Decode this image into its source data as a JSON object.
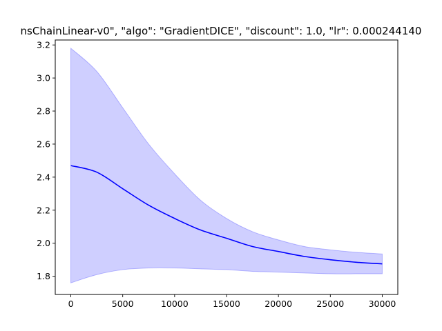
{
  "chart_data": {
    "type": "line",
    "title": "nsChainLinear-v0\", \"algo\": \"GradientDICE\", \"discount\": 1.0, \"lr\": 0.000244140",
    "xlabel": "",
    "ylabel": "",
    "xlim": [
      -1500,
      31500
    ],
    "ylim": [
      1.69,
      3.23
    ],
    "x_ticks": [
      0,
      5000,
      10000,
      15000,
      20000,
      25000,
      30000
    ],
    "y_ticks": [
      1.8,
      2.0,
      2.2,
      2.4,
      2.6,
      2.8,
      3.0,
      3.2
    ],
    "x_tick_labels": [
      "0",
      "5000",
      "10000",
      "15000",
      "20000",
      "25000",
      "30000"
    ],
    "y_tick_labels": [
      "1.8",
      "2.0",
      "2.2",
      "2.4",
      "2.6",
      "2.8",
      "3.0",
      "3.2"
    ],
    "grid": false,
    "legend": "none",
    "series": [
      {
        "x": [
          0,
          2500,
          5000,
          7500,
          10000,
          12500,
          15000,
          17500,
          20000,
          22500,
          25000,
          27500,
          30000
        ],
        "values": [
          2.47,
          2.43,
          2.33,
          2.23,
          2.15,
          2.08,
          2.03,
          1.98,
          1.95,
          1.92,
          1.9,
          1.885,
          1.875
        ],
        "upper": [
          3.18,
          3.04,
          2.82,
          2.6,
          2.42,
          2.26,
          2.15,
          2.07,
          2.02,
          1.98,
          1.96,
          1.945,
          1.935
        ],
        "lower": [
          1.76,
          1.81,
          1.84,
          1.85,
          1.85,
          1.845,
          1.84,
          1.83,
          1.825,
          1.82,
          1.815,
          1.815,
          1.815
        ],
        "color": "#0000ff",
        "band_color": "#0000ff"
      }
    ]
  }
}
